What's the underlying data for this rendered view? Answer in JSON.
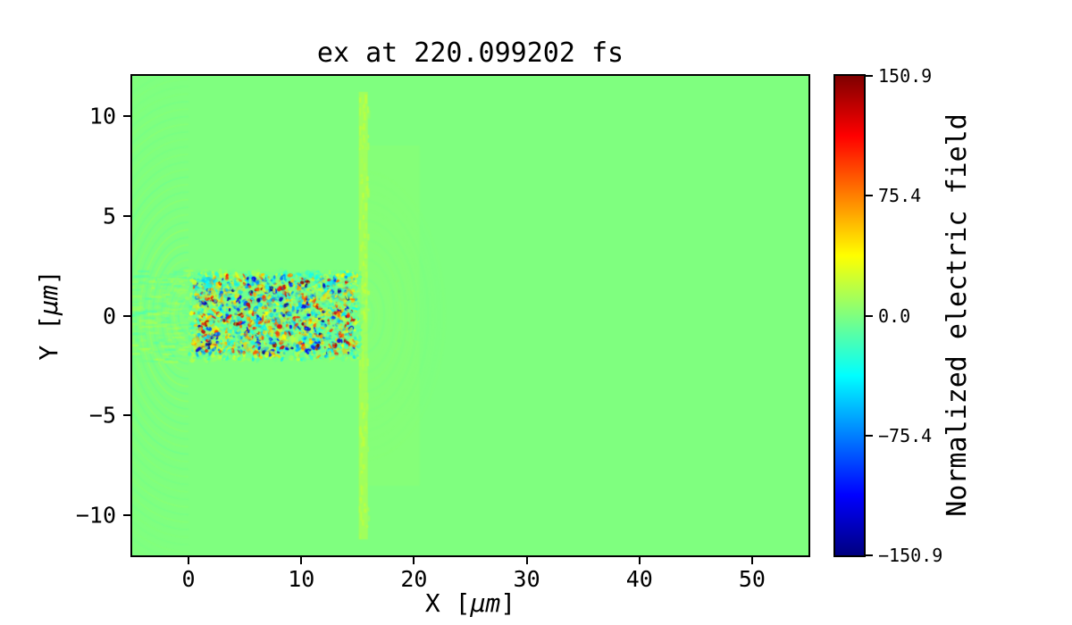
{
  "chart_data": {
    "type": "heatmap",
    "title": "ex at 220.099202 fs",
    "field_component": "ex",
    "time_fs": 220.099202,
    "xlabel": "X [μm]",
    "ylabel": "Y [μm]",
    "xlabel_parts": {
      "prefix": "X [",
      "math": "μm",
      "suffix": "]"
    },
    "ylabel_parts": {
      "prefix": "Y [",
      "math": "μm",
      "suffix": "]"
    },
    "xlim": [
      -5,
      55
    ],
    "ylim": [
      -12,
      12
    ],
    "x_ticks": [
      0,
      10,
      20,
      30,
      40,
      50
    ],
    "x_tick_labels": [
      "0",
      "10",
      "20",
      "30",
      "40",
      "50"
    ],
    "y_ticks": [
      10,
      5,
      0,
      -5,
      -10
    ],
    "y_tick_labels": [
      "10",
      "5",
      "0",
      "−5",
      "−10"
    ],
    "colormap": "jet",
    "grid": false,
    "colorbar": {
      "label": "Normalized electric field",
      "vmin": -150.9,
      "vmax": 150.9,
      "ticks": [
        150.9,
        75.4,
        0.0,
        -75.4,
        -150.9
      ],
      "tick_labels": [
        "150.9",
        "75.4",
        "0.0",
        "−75.4",
        "−150.9"
      ],
      "position": "right"
    },
    "field": {
      "background_value": 0.0,
      "features": [
        {
          "name": "circular-wavefronts",
          "center": [
            0,
            0
          ],
          "radius_range": [
            0.9,
            12.6
          ],
          "side": "left",
          "amplitude": 13,
          "description": "faint concentric wavefronts radiating left of source plane x=0"
        },
        {
          "name": "channel-streaks",
          "x_range": [
            -5,
            0.2
          ],
          "y_range": [
            -2.3,
            2.3
          ],
          "amplitude": 22,
          "description": "faint horizontal interference streaks left of x=0"
        },
        {
          "name": "interface-band",
          "x_range": [
            15.1,
            15.9
          ],
          "y_range": [
            -11.2,
            11.2
          ],
          "amplitude": 18,
          "description": "yellow-green vertical band at plasma exit near x=15"
        },
        {
          "name": "transmitted-wavefronts",
          "center": [
            15.5,
            0
          ],
          "radius_range": [
            0.9,
            7.2
          ],
          "side": "right",
          "amplitude": 10,
          "description": "faint arcs expanding right of x=15"
        },
        {
          "name": "laser-pulse-speckle",
          "x_range": [
            0,
            15.3
          ],
          "y_range": [
            -2.2,
            2.2
          ],
          "peak_amplitude": 150.9,
          "description": "turbulent speckled laser field in channel, red/blue hot spots"
        }
      ]
    }
  }
}
